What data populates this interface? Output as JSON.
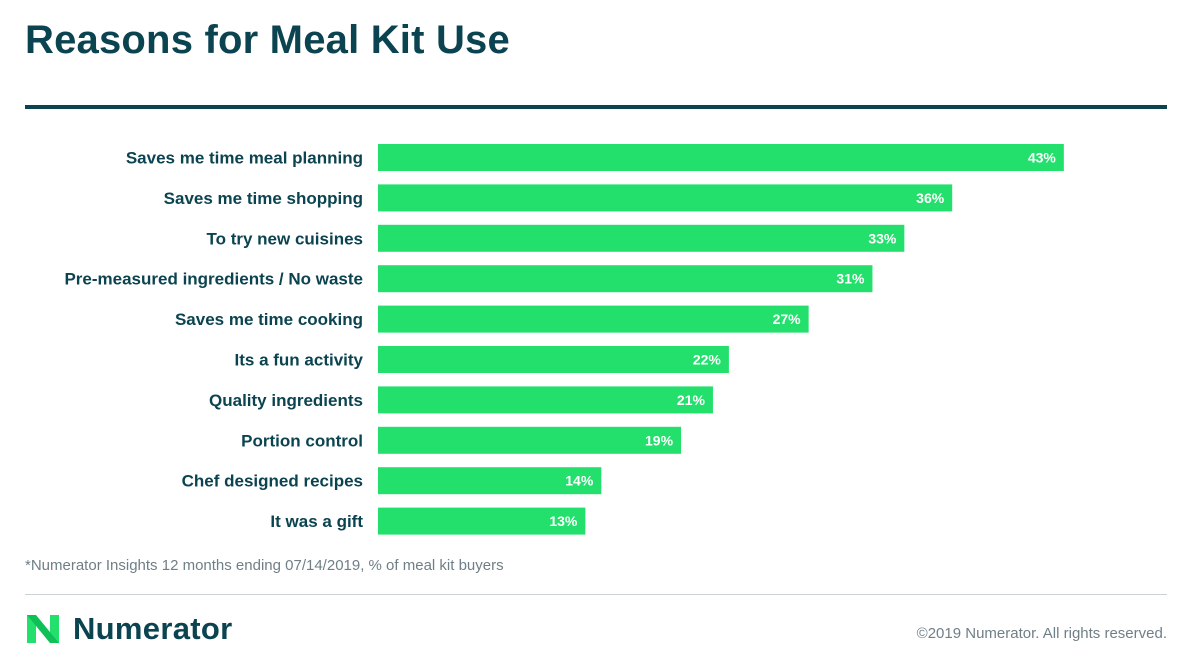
{
  "colors": {
    "accent": "#23e06d",
    "text_dark": "#0b4450",
    "text_muted": "#6f7f86"
  },
  "footnote": "*Numerator Insights 12 months ending 07/14/2019, % of meal kit buyers",
  "brand": {
    "name": "Numerator",
    "logo_icon": "numerator-n-logo-icon"
  },
  "copyright": "©2019 Numerator. All rights reserved.",
  "chart_data": {
    "type": "bar",
    "orientation": "horizontal",
    "title": "Reasons for Meal Kit Use",
    "categories": [
      "Saves me time meal planning",
      "Saves me time shopping",
      "To try new cuisines",
      "Pre-measured ingredients / No waste",
      "Saves me time cooking",
      "Its a fun activity",
      "Quality ingredients",
      "Portion control",
      "Chef designed recipes",
      "It was a gift"
    ],
    "values": [
      43,
      36,
      33,
      31,
      27,
      22,
      21,
      19,
      14,
      13
    ],
    "value_labels": [
      "43%",
      "36%",
      "33%",
      "31%",
      "27%",
      "22%",
      "21%",
      "19%",
      "14%",
      "13%"
    ],
    "xlim": [
      0,
      50
    ],
    "grid": false,
    "legend": "none",
    "bar_color": "#23e06d"
  }
}
